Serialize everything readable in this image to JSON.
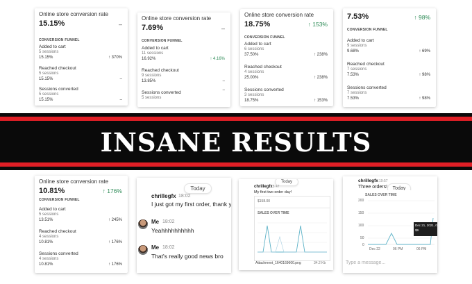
{
  "cards_top": [
    {
      "title": "Online store conversion rate",
      "rate": "15.15%",
      "trend": "",
      "funnel": "CONVERSION FUNNEL",
      "steps": [
        {
          "label": "Added to cart",
          "sessions": "5 sessions",
          "pct": "15.15%",
          "change": "↑ 370%"
        },
        {
          "label": "Reached checkout",
          "sessions": "5 sessions",
          "pct": "15.15%",
          "change": ""
        },
        {
          "label": "Sessions converted",
          "sessions": "5 sessions",
          "pct": "15.15%",
          "change": ""
        }
      ]
    },
    {
      "title": "Online store conversion rate",
      "rate": "7.69%",
      "trend": "",
      "funnel": "CONVERSION FUNNEL",
      "steps": [
        {
          "label": "Added to cart",
          "sessions": "11 sessions",
          "pct": "16.92%",
          "change": "↑ 4.16%"
        },
        {
          "label": "Reached checkout",
          "sessions": "9 sessions",
          "pct": "13.85%",
          "change": ""
        },
        {
          "label": "Sessions converted",
          "sessions": "5 sessions",
          "pct": "",
          "change": ""
        }
      ]
    },
    {
      "title": "Online store conversion rate",
      "rate": "18.75%",
      "trend": "↑ 153%",
      "funnel": "CONVERSION FUNNEL",
      "steps": [
        {
          "label": "Added to cart",
          "sessions": "6 sessions",
          "pct": "37.50%",
          "change": "↑ 238%"
        },
        {
          "label": "Reached checkout",
          "sessions": "4 sessions",
          "pct": "25.00%",
          "change": "↑ 238%"
        },
        {
          "label": "Sessions converted",
          "sessions": "3 sessions",
          "pct": "18.75%",
          "change": "↑ 153%"
        }
      ]
    },
    {
      "title": "",
      "rate": "7.53%",
      "trend": "↑ 98%",
      "funnel": "CONVERSION FUNNEL",
      "steps": [
        {
          "label": "Added to cart",
          "sessions": "9 sessions",
          "pct": "9.68%",
          "change": "↑ 69%"
        },
        {
          "label": "Reached checkout",
          "sessions": "7 sessions",
          "pct": "7.53%",
          "change": "↑ 98%"
        },
        {
          "label": "Sessions converted",
          "sessions": "7 sessions",
          "pct": "7.53%",
          "change": "↑ 98%"
        }
      ]
    }
  ],
  "banner": {
    "text": "INSANE RESULTS"
  },
  "card_bottom": {
    "title": "Online store conversion rate",
    "rate": "10.81%",
    "trend": "↑ 176%",
    "funnel": "CONVERSION FUNNEL",
    "steps": [
      {
        "label": "Added to cart",
        "sessions": "5 sessions",
        "pct": "13.51%",
        "change": "↑ 245%"
      },
      {
        "label": "Reached checkout",
        "sessions": "4 sessions",
        "pct": "10.81%",
        "change": "↑ 176%"
      },
      {
        "label": "Sessions converted",
        "sessions": "4 sessions",
        "pct": "10.81%",
        "change": "↑ 176%"
      }
    ]
  },
  "chat1": {
    "today": "Today",
    "messages": [
      {
        "name": "chrillegfx",
        "time": "18:02",
        "text": "I just got my first order, thank you!!!"
      },
      {
        "name": "Me",
        "time": "18:02",
        "text": "Yeahhhhhhhhhh"
      },
      {
        "name": "Me",
        "time": "18:02",
        "text": "That's really good news bro"
      }
    ]
  },
  "chat2": {
    "today": "Today",
    "name": "chrillegfx",
    "time": "18:47",
    "text": "My first two order day!",
    "value": "$158.00",
    "sales_label": "SALES OVER TIME",
    "attachment": "Attachment_1640169600.png",
    "size": "34.2 Kb"
  },
  "chat3": {
    "today": "Today",
    "name": "chrillegfx",
    "time": "19:57",
    "text": "Three orders!",
    "sales_label": "SALES OVER TIME",
    "y_ticks": [
      "200",
      "150",
      "100",
      "50",
      "0"
    ],
    "x_ticks": [
      "Dec 22",
      "06 PM",
      "06 PM"
    ],
    "tooltip_date": "Dec 21, 2021, 06",
    "tooltip_val": "$9",
    "placeholder": "Type a message..."
  }
}
